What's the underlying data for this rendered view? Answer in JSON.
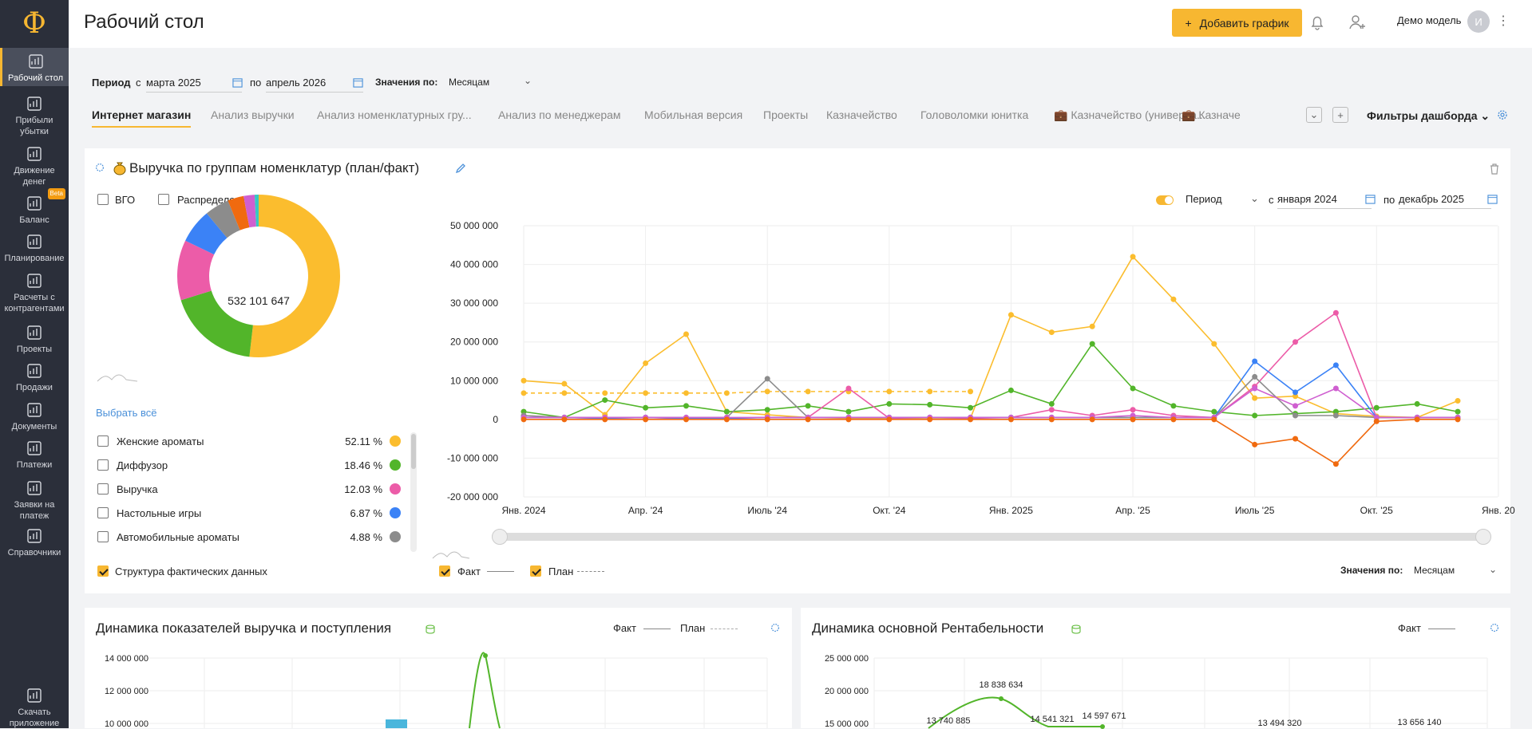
{
  "app": {
    "logo": "Ф",
    "title": "Рабочий стол",
    "add_chart": "Добавить график",
    "user": "Демо модель",
    "avatar": "И"
  },
  "sidebar": [
    {
      "label1": "Рабочий стол",
      "label2": "",
      "icon": "dashboard-icon"
    },
    {
      "label1": "Прибыли",
      "label2": "убытки",
      "icon": "bar-chart-icon"
    },
    {
      "label1": "Движение",
      "label2": "денег",
      "icon": "coins-icon"
    },
    {
      "label1": "Баланс",
      "label2": "",
      "icon": "balance-icon",
      "badge": "Beta"
    },
    {
      "label1": "Планирование",
      "label2": "",
      "icon": "target-icon"
    },
    {
      "label1": "Расчеты с",
      "label2": "контрагентами",
      "icon": "contractors-icon"
    },
    {
      "label1": "Проекты",
      "label2": "",
      "icon": "briefcase-icon"
    },
    {
      "label1": "Продажи",
      "label2": "",
      "icon": "dollar-icon"
    },
    {
      "label1": "Документы",
      "label2": "",
      "icon": "documents-icon"
    },
    {
      "label1": "Платежи",
      "label2": "",
      "icon": "wallet-icon"
    },
    {
      "label1": "Заявки на",
      "label2": "платеж",
      "icon": "request-icon"
    },
    {
      "label1": "Справочники",
      "label2": "",
      "icon": "folder-icon"
    },
    {
      "label1": "Скачать",
      "label2": "приложение",
      "icon": "phone-icon"
    }
  ],
  "filters": {
    "period_label": "Период",
    "from": "с",
    "from_value": "марта 2025",
    "to": "по",
    "to_value": "апрель 2026",
    "values_by": "Значения по:",
    "values_value": "Месяцам"
  },
  "tabs": [
    "Интернет магазин",
    "Анализ выручки",
    "Анализ номенклатурных гру...",
    "Анализ по менеджерам",
    "Мобильная версия",
    "Проекты",
    "Казначейство",
    "Головоломки юнитка",
    "Казначейство (универса...",
    "Казначе"
  ],
  "dashboard_filters": "Фильтры дашборда",
  "card1": {
    "title": "Выручка по группам номенклатур (план/факт)",
    "vgo": "ВГО",
    "distribution": "Распределение",
    "total": "532 101 647",
    "select_all": "Выбрать всё",
    "legend": [
      {
        "name": "Женские ароматы",
        "pct": "52.11 %",
        "color": "#fbbd2e"
      },
      {
        "name": "Диффузор",
        "pct": "18.46 %",
        "color": "#52b52a"
      },
      {
        "name": "Выручка",
        "pct": "12.03 %",
        "color": "#ec5ca8"
      },
      {
        "name": "Настольные игры",
        "pct": "6.87 %",
        "color": "#3b82f6"
      },
      {
        "name": "Автомобильные ароматы",
        "pct": "4.88 %",
        "color": "#8c8c8c"
      }
    ],
    "structure": "Структура фактических данных",
    "fact": "Факт",
    "plan": "План",
    "period": "Период",
    "from": "с",
    "from_value": "января 2024",
    "to": "по",
    "to_value": "декабрь 2025",
    "values_by": "Значения по:",
    "values_value": "Месяцам"
  },
  "card2": {
    "title": "Динамика показателей выручка и поступления",
    "fact": "Факт",
    "plan": "План",
    "yticks": [
      "14 000 000",
      "12 000 000",
      "10 000 000"
    ]
  },
  "card3": {
    "title": "Динамика основной Рентабельности",
    "fact": "Факт",
    "yticks": [
      "25 000 000",
      "20 000 000",
      "15 000 000"
    ],
    "labels": [
      "13 740 885",
      "18 838 634",
      "14 541 321",
      "14 597 671",
      "13 494 320",
      "13 656 140"
    ]
  },
  "chart_data": [
    {
      "type": "pie",
      "title": "Выручка по группам номенклатур (план/факт)",
      "center_label": "532 101 647",
      "slices": [
        {
          "name": "Женские ароматы",
          "value": 52.11,
          "color": "#fbbd2e"
        },
        {
          "name": "Диффузор",
          "value": 18.46,
          "color": "#52b52a"
        },
        {
          "name": "Выручка",
          "value": 12.03,
          "color": "#ec5ca8"
        },
        {
          "name": "Настольные игры",
          "value": 6.87,
          "color": "#3b82f6"
        },
        {
          "name": "Автомобильные ароматы",
          "value": 4.88,
          "color": "#8c8c8c"
        },
        {
          "value": 3.2,
          "color": "#f06a0f"
        },
        {
          "value": 2.2,
          "color": "#cf5fd0"
        },
        {
          "value": 0.8,
          "color": "#38c7c2"
        }
      ]
    },
    {
      "type": "line",
      "xticks": [
        "Янв. 2024",
        "Апр. '24",
        "Июль '24",
        "Окт. '24",
        "Янв. 2025",
        "Апр. '25",
        "Июль '25",
        "Окт. '25",
        "Янв. 20"
      ],
      "yticks": [
        "50 000 000",
        "40 000 000",
        "30 000 000",
        "20 000 000",
        "10 000 000",
        "0",
        "-10 000 000",
        "-20 000 000"
      ],
      "ylim": [
        -20000000,
        50000000
      ],
      "series": [
        {
          "name": "Женские ароматы",
          "color": "#fbbd2e",
          "dash": false,
          "values": [
            10,
            9.2,
            1.2,
            14.5,
            22,
            2,
            1.2,
            0.5,
            0.3,
            0.2,
            0.4,
            0.3,
            27,
            22.5,
            24,
            42,
            31,
            19.5,
            5.5,
            6,
            1.5,
            0.8,
            0.5,
            4.8
          ]
        },
        {
          "name": "Женские ароматы",
          "color": "#fbbd2e",
          "dash": true,
          "values": [
            6.8,
            6.8,
            6.8,
            6.8,
            6.8,
            6.8,
            7.2,
            7.2,
            7.2,
            7.2,
            7.2,
            7.2,
            null,
            null,
            null,
            null,
            null,
            null,
            null,
            null,
            null,
            null,
            null,
            null
          ]
        },
        {
          "name": "Диффузор",
          "color": "#52b52a",
          "values": [
            2,
            0.5,
            5,
            3,
            3.5,
            2,
            2.5,
            3.5,
            2,
            4,
            3.8,
            3,
            7.5,
            4,
            19.5,
            8,
            3.5,
            2,
            1,
            1.5,
            2,
            3,
            4,
            2
          ]
        },
        {
          "name": "Выручка",
          "color": "#ec5ca8",
          "values": [
            1,
            0.5,
            0.3,
            0.5,
            0.2,
            0.3,
            0.5,
            0.5,
            8,
            0.3,
            0.5,
            0.3,
            0.5,
            2.5,
            1,
            2.5,
            1,
            0.5,
            8.5,
            20,
            27.5,
            0.5,
            0.5,
            0.5
          ]
        },
        {
          "name": "Настольные игры",
          "color": "#3b82f6",
          "values": [
            0.5,
            0.5,
            0.3,
            0.5,
            0.3,
            0.3,
            0.5,
            0.5,
            0.5,
            0.5,
            0.5,
            0.5,
            0.5,
            0.5,
            0.5,
            0.5,
            0.5,
            0.5,
            15,
            7,
            14,
            0.5,
            0.5,
            0.5
          ]
        },
        {
          "name": "Автомобильные ароматы",
          "color": "#8c8c8c",
          "values": [
            1,
            0.5,
            0.5,
            0.5,
            0.5,
            0.5,
            10.5,
            0.5,
            0.5,
            0.5,
            0.5,
            0.5,
            0.5,
            0.5,
            0.5,
            0.5,
            0.5,
            0.5,
            11,
            1,
            1,
            0.5,
            0.5,
            0.5
          ]
        },
        {
          "color": "#cf5fd0",
          "values": [
            0.5,
            0.5,
            0.5,
            0.5,
            0.5,
            0.5,
            0.5,
            0.5,
            0.5,
            0.5,
            0.5,
            0.5,
            0.5,
            0.5,
            0.5,
            1,
            0.5,
            0.5,
            8,
            3.5,
            8,
            0.5,
            0.5,
            0.5
          ]
        },
        {
          "color": "#f06a0f",
          "values": [
            0,
            0,
            0,
            0,
            0,
            0,
            0,
            0,
            0,
            0,
            0,
            0,
            0,
            0,
            0,
            0,
            0,
            0,
            -6.5,
            -5,
            -11.5,
            -0.5,
            0,
            0
          ]
        }
      ]
    }
  ]
}
